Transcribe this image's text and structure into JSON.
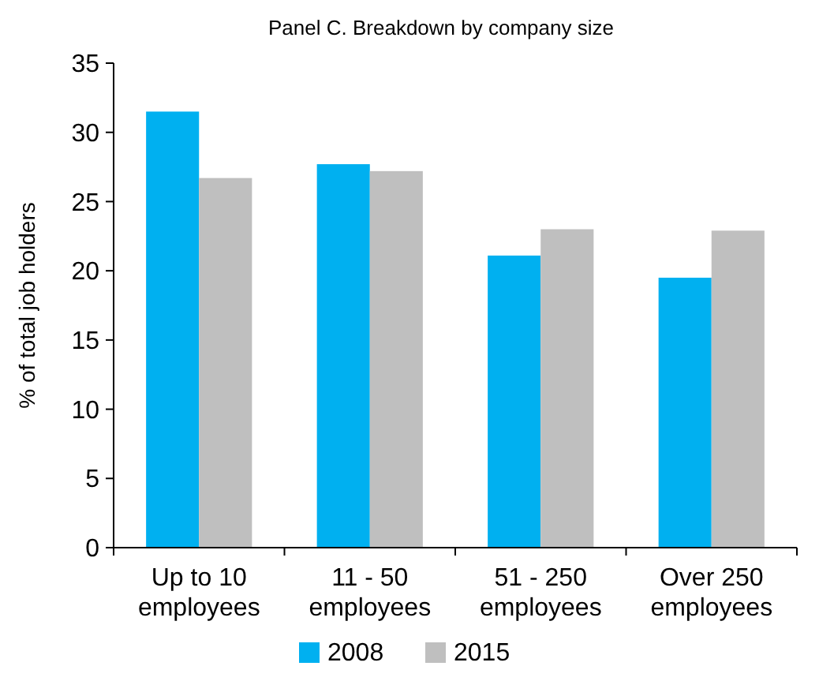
{
  "chart_data": {
    "type": "bar",
    "title": "Panel C. Breakdown by company size",
    "ylabel": "% of total job holders",
    "categories": [
      "Up to 10 employees",
      "11 - 50 employees",
      "51 - 250 employees",
      "Over 250 employees"
    ],
    "series": [
      {
        "name": "2008",
        "color": "#00b0f0",
        "values": [
          31.5,
          27.7,
          21.1,
          19.5
        ]
      },
      {
        "name": "2015",
        "color": "#bfbfbf",
        "values": [
          26.7,
          27.2,
          23.0,
          22.9
        ]
      }
    ],
    "ylim": [
      0,
      35
    ],
    "yticks": [
      0,
      5,
      10,
      15,
      20,
      25,
      30,
      35
    ],
    "grid": false,
    "legend": "bottom"
  }
}
